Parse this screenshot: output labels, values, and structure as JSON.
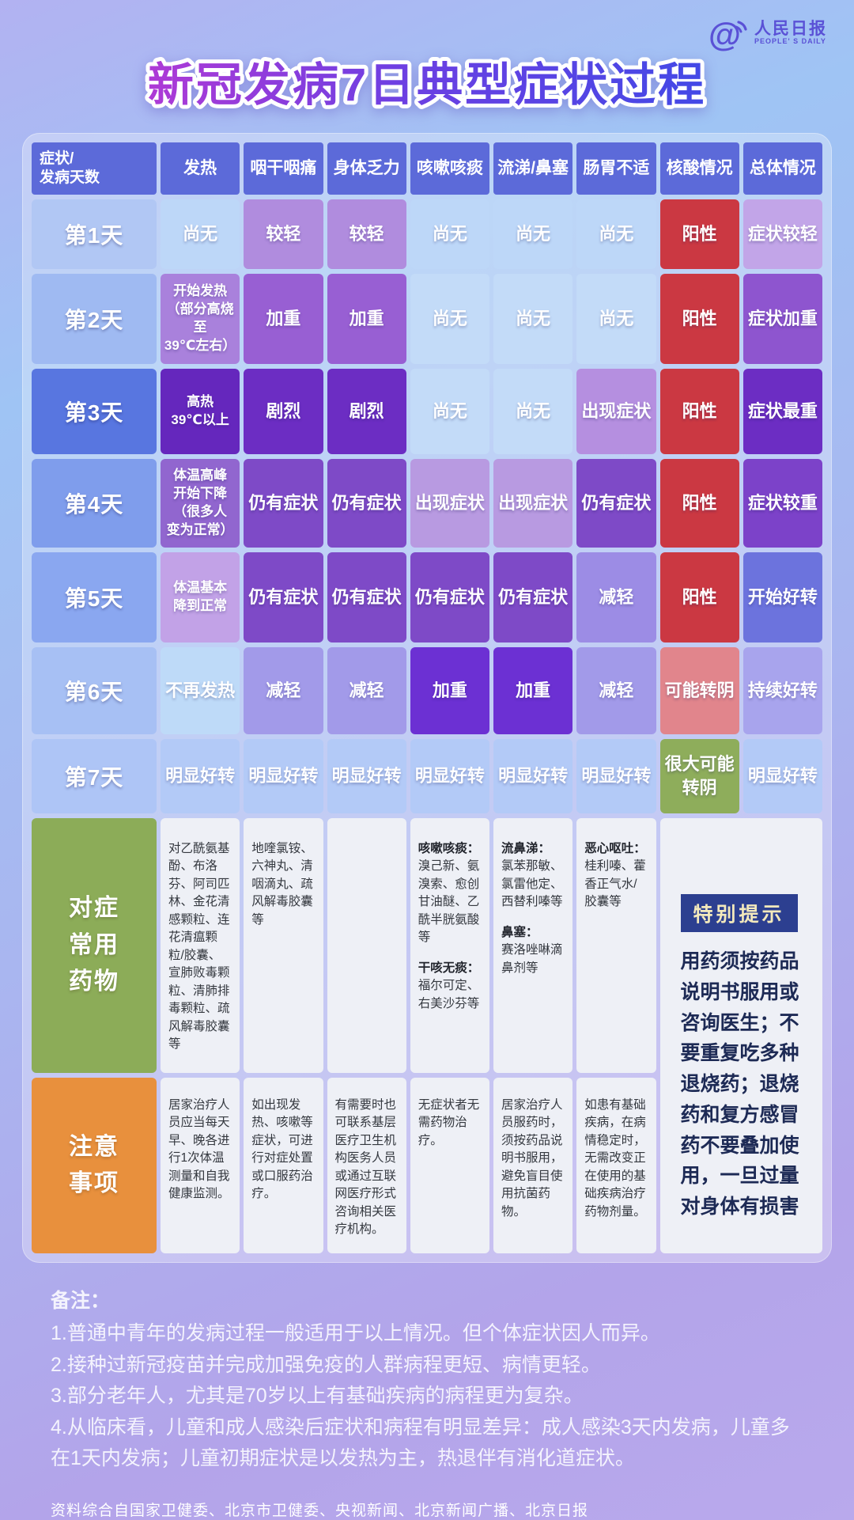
{
  "brand": {
    "name": "人民日报",
    "sub": "PEOPLE' S DAILY"
  },
  "title": "新冠发病7日典型症状过程",
  "table": {
    "columns": [
      "症状/\n发病天数",
      "发热",
      "咽干咽痛",
      "身体乏力",
      "咳嗽咳痰",
      "流涕/鼻塞",
      "肠胃不适",
      "核酸情况",
      "总体情况"
    ],
    "day_rows": [
      {
        "day": "第1天",
        "day_bg": "#b1c7f4",
        "cells": [
          {
            "text": "尚无",
            "bg": "#bdd7f8"
          },
          {
            "text": "较轻",
            "bg": "#b08cde"
          },
          {
            "text": "较轻",
            "bg": "#b08cde"
          },
          {
            "text": "尚无",
            "bg": "#bdd7f8"
          },
          {
            "text": "尚无",
            "bg": "#bdd7f8"
          },
          {
            "text": "尚无",
            "bg": "#bdd7f8"
          },
          {
            "text": "阳性",
            "bg": "#cb3842"
          },
          {
            "text": "症状较轻",
            "bg": "#c2a5e8"
          }
        ]
      },
      {
        "day": "第2天",
        "day_bg": "#9fbaf2",
        "cells": [
          {
            "text": "开始发热\n（部分高烧至\n39℃左右）",
            "bg": "#a981dc"
          },
          {
            "text": "加重",
            "bg": "#985fd3"
          },
          {
            "text": "加重",
            "bg": "#985fd3"
          },
          {
            "text": "尚无",
            "bg": "#c3dbf8"
          },
          {
            "text": "尚无",
            "bg": "#c3dbf8"
          },
          {
            "text": "尚无",
            "bg": "#c3dbf8"
          },
          {
            "text": "阳性",
            "bg": "#cb3842"
          },
          {
            "text": "症状加重",
            "bg": "#8e55cf"
          }
        ]
      },
      {
        "day": "第3天",
        "day_bg": "#5876e0",
        "cells": [
          {
            "text": "高热\n39℃以上",
            "bg": "#6527bd"
          },
          {
            "text": "剧烈",
            "bg": "#6c2dc3"
          },
          {
            "text": "剧烈",
            "bg": "#6c2dc3"
          },
          {
            "text": "尚无",
            "bg": "#c3dbf8"
          },
          {
            "text": "尚无",
            "bg": "#c3dbf8"
          },
          {
            "text": "出现症状",
            "bg": "#b58fe0"
          },
          {
            "text": "阳性",
            "bg": "#cb3842"
          },
          {
            "text": "症状最重",
            "bg": "#6c2dc3"
          }
        ]
      },
      {
        "day": "第4天",
        "day_bg": "#7f9dec",
        "cells": [
          {
            "text": "体温高峰\n开始下降\n（很多人\n变为正常）",
            "bg": "#9166cf"
          },
          {
            "text": "仍有症状",
            "bg": "#7e4ac7"
          },
          {
            "text": "仍有症状",
            "bg": "#7e4ac7"
          },
          {
            "text": "出现症状",
            "bg": "#b89ae1"
          },
          {
            "text": "出现症状",
            "bg": "#b89ae1"
          },
          {
            "text": "仍有症状",
            "bg": "#7e4ac7"
          },
          {
            "text": "阳性",
            "bg": "#cb3842"
          },
          {
            "text": "症状较重",
            "bg": "#7c42c9"
          }
        ]
      },
      {
        "day": "第5天",
        "day_bg": "#8aa7f0",
        "cells": [
          {
            "text": "体温基本\n降到正常",
            "bg": "#c2a2e7"
          },
          {
            "text": "仍有症状",
            "bg": "#7e4ac7"
          },
          {
            "text": "仍有症状",
            "bg": "#7e4ac7"
          },
          {
            "text": "仍有症状",
            "bg": "#7e4ac7"
          },
          {
            "text": "仍有症状",
            "bg": "#7e4ac7"
          },
          {
            "text": "减轻",
            "bg": "#9c8ce5"
          },
          {
            "text": "阳性",
            "bg": "#cb3842"
          },
          {
            "text": "开始好转",
            "bg": "#6c73dd"
          }
        ]
      },
      {
        "day": "第6天",
        "day_bg": "#a7c0f4",
        "cells": [
          {
            "text": "不再发热",
            "bg": "#bedaf8"
          },
          {
            "text": "减轻",
            "bg": "#a29ae9"
          },
          {
            "text": "减轻",
            "bg": "#a29ae9"
          },
          {
            "text": "加重",
            "bg": "#6c30d3"
          },
          {
            "text": "加重",
            "bg": "#6c30d3"
          },
          {
            "text": "减轻",
            "bg": "#a29ae9"
          },
          {
            "text": "可能转阴",
            "bg": "#e1858c"
          },
          {
            "text": "持续好转",
            "bg": "#a8a4ed"
          }
        ]
      },
      {
        "day": "第7天",
        "day_bg": "#aec5f6",
        "cells": [
          {
            "text": "明显好转",
            "bg": "#b3caf7"
          },
          {
            "text": "明显好转",
            "bg": "#b3caf7"
          },
          {
            "text": "明显好转",
            "bg": "#b3caf7"
          },
          {
            "text": "明显好转",
            "bg": "#b3caf7"
          },
          {
            "text": "明显好转",
            "bg": "#b3caf7"
          },
          {
            "text": "明显好转",
            "bg": "#b3caf7"
          },
          {
            "text": "很大可能\n转阴",
            "bg": "#8ead5b"
          },
          {
            "text": "明显好转",
            "bg": "#b3caf7"
          }
        ]
      }
    ],
    "med_row": {
      "label": "对症\n常用\n药物",
      "label_bg": "#8cac58",
      "cells": [
        [
          {
            "lead": "",
            "text": "对乙酰氨基酚、布洛芬、阿司匹林、金花清感颗粒、连花清瘟颗粒/胶囊、宣肺败毒颗粒、清肺排毒颗粒、疏风解毒胶囊等"
          }
        ],
        [
          {
            "lead": "",
            "text": "地喹氯铵、六神丸、清咽滴丸、疏风解毒胶囊等"
          }
        ],
        [],
        [
          {
            "lead": "咳嗽咳痰：",
            "text": "溴己新、氨溴索、愈创甘油醚、乙酰半胱氨酸等"
          },
          {
            "lead": "干咳无痰：",
            "text": "福尔可定、右美沙芬等"
          }
        ],
        [
          {
            "lead": "流鼻涕：",
            "text": "氯苯那敏、氯雷他定、西替利嗪等"
          },
          {
            "lead": "鼻塞：",
            "text": "赛洛唑啉滴鼻剂等"
          }
        ],
        [
          {
            "lead": "恶心呕吐：",
            "text": "桂利嗪、藿香正气水/胶囊等"
          }
        ]
      ]
    },
    "notes_row": {
      "label": "注意\n事项",
      "label_bg": "#e8903d",
      "cells": [
        "居家治疗人员应当每天早、晚各进行1次体温测量和自我健康监测。",
        "如出现发热、咳嗽等症状，可进行对症处置或口服药治疗。",
        "有需要时也可联系基层医疗卫生机构医务人员或通过互联网医疗形式咨询相关医疗机构。",
        "无症状者无需药物治疗。",
        "居家治疗人员服药时，须按药品说明书服用，避免盲目使用抗菌药物。",
        "如患有基础疾病，在病情稳定时，无需改变正在使用的基础疾病治疗药物剂量。"
      ]
    },
    "tip": {
      "badge": "特别提示",
      "text": "用药须按药品说明书服用或咨询医生；不要重复吃多种退烧药；退烧药和复方感冒药不要叠加使用，一旦过量对身体有损害"
    }
  },
  "footer": {
    "title": "备注：",
    "items": [
      "1.普通中青年的发病过程一般适用于以上情况。但个体症状因人而异。",
      "2.接种过新冠疫苗并完成加强免疫的人群病程更短、病情更轻。",
      "3.部分老年人，尤其是70岁以上有基础疾病的病程更为复杂。",
      "4.从临床看，儿童和成人感染后症状和病程有明显差异：成人感染3天内发病，儿童多在1天内发病；儿童初期症状是以发热为主，热退伴有消化道症状。"
    ],
    "source": "资料综合自国家卫健委、北京市卫健委、央视新闻、北京新闻广播、北京日报"
  },
  "colors": {
    "header_bg": "#5c6ad9",
    "positive_red": "#cb3842",
    "maybe_negative_pink": "#e1858c",
    "likely_negative_green": "#8ead5b",
    "med_label_green": "#8cac58",
    "notes_label_orange": "#e8903d",
    "tip_badge_navy": "#2c3f90",
    "tip_badge_text": "#f3e9bc"
  },
  "chart_data": {
    "type": "table",
    "title": "新冠发病7日典型症状过程",
    "columns": [
      "症状/发病天数",
      "发热",
      "咽干咽痛",
      "身体乏力",
      "咳嗽咳痰",
      "流涕/鼻塞",
      "肠胃不适",
      "核酸情况",
      "总体情况"
    ],
    "rows": [
      [
        "第1天",
        "尚无",
        "较轻",
        "较轻",
        "尚无",
        "尚无",
        "尚无",
        "阳性",
        "症状较轻"
      ],
      [
        "第2天",
        "开始发热（部分高烧至39℃左右）",
        "加重",
        "加重",
        "尚无",
        "尚无",
        "尚无",
        "阳性",
        "症状加重"
      ],
      [
        "第3天",
        "高热39℃以上",
        "剧烈",
        "剧烈",
        "尚无",
        "尚无",
        "出现症状",
        "阳性",
        "症状最重"
      ],
      [
        "第4天",
        "体温高峰开始下降（很多人变为正常）",
        "仍有症状",
        "仍有症状",
        "出现症状",
        "出现症状",
        "仍有症状",
        "阳性",
        "症状较重"
      ],
      [
        "第5天",
        "体温基本降到正常",
        "仍有症状",
        "仍有症状",
        "仍有症状",
        "仍有症状",
        "减轻",
        "阳性",
        "开始好转"
      ],
      [
        "第6天",
        "不再发热",
        "减轻",
        "减轻",
        "加重",
        "加重",
        "减轻",
        "可能转阴",
        "持续好转"
      ],
      [
        "第7天",
        "明显好转",
        "明显好转",
        "明显好转",
        "明显好转",
        "明显好转",
        "明显好转",
        "很大可能转阴",
        "明显好转"
      ]
    ]
  }
}
